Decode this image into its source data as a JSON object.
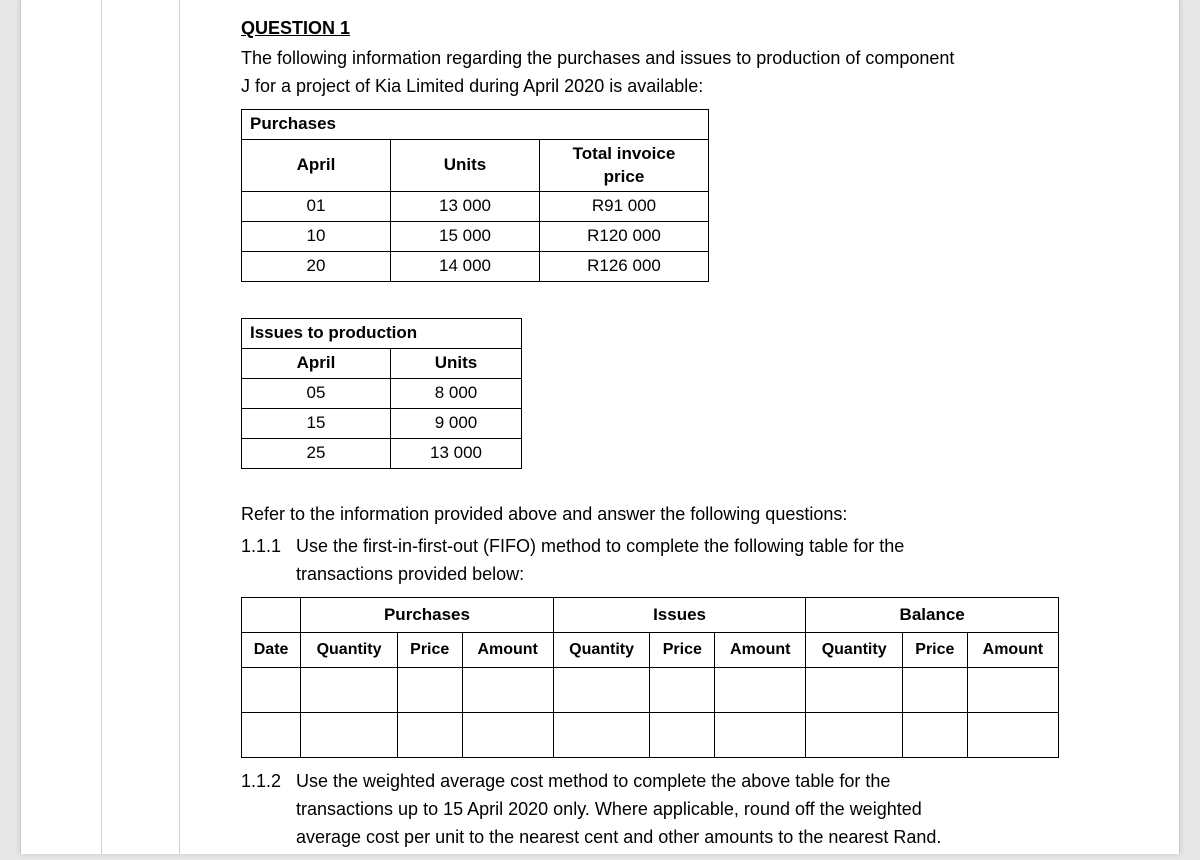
{
  "question": {
    "title": "QUESTION 1",
    "intro_line1": "The following information regarding the purchases and issues to production of component",
    "intro_line2": "J for a project of Kia Limited during April 2020 is available:"
  },
  "purchases": {
    "caption": "Purchases",
    "headers": {
      "col1": "April",
      "col2": "Units",
      "col3_line1": "Total invoice",
      "col3_line2": "price"
    },
    "rows": [
      {
        "date": "01",
        "units": "13 000",
        "price": "R91 000"
      },
      {
        "date": "10",
        "units": "15 000",
        "price": "R120 000"
      },
      {
        "date": "20",
        "units": "14 000",
        "price": "R126 000"
      }
    ]
  },
  "issues": {
    "caption": "Issues to production",
    "headers": {
      "col1": "April",
      "col2": "Units"
    },
    "rows": [
      {
        "date": "05",
        "units": "8 000"
      },
      {
        "date": "15",
        "units": "9 000"
      },
      {
        "date": "25",
        "units": "13 000"
      }
    ]
  },
  "instruction_lead": "Refer to the information provided above and answer the following questions:",
  "sub_1_1_1": {
    "num": "1.1.1",
    "text_line1": "Use the first-in-first-out (FIFO) method to complete the following table for the",
    "text_line2": "transactions provided below:"
  },
  "fifo_table": {
    "group_headers": {
      "purchases": "Purchases",
      "issues": "Issues",
      "balance": "Balance"
    },
    "col_headers": {
      "date": "Date",
      "quantity": "Quantity",
      "price": "Price",
      "amount": "Amount"
    }
  },
  "sub_1_1_2": {
    "num": "1.1.2",
    "text_line1": "Use the weighted average cost method to complete the above table for the",
    "text_line2": "transactions up to 15 April 2020 only.  Where applicable, round off the weighted",
    "text_line3": "average cost per unit to the nearest cent and other amounts to the nearest Rand."
  },
  "colors": {
    "page_bg": "#e8e8e8",
    "paper_bg": "#ffffff",
    "border": "#000000",
    "margin_line": "#cfcfcf",
    "text": "#000000"
  }
}
